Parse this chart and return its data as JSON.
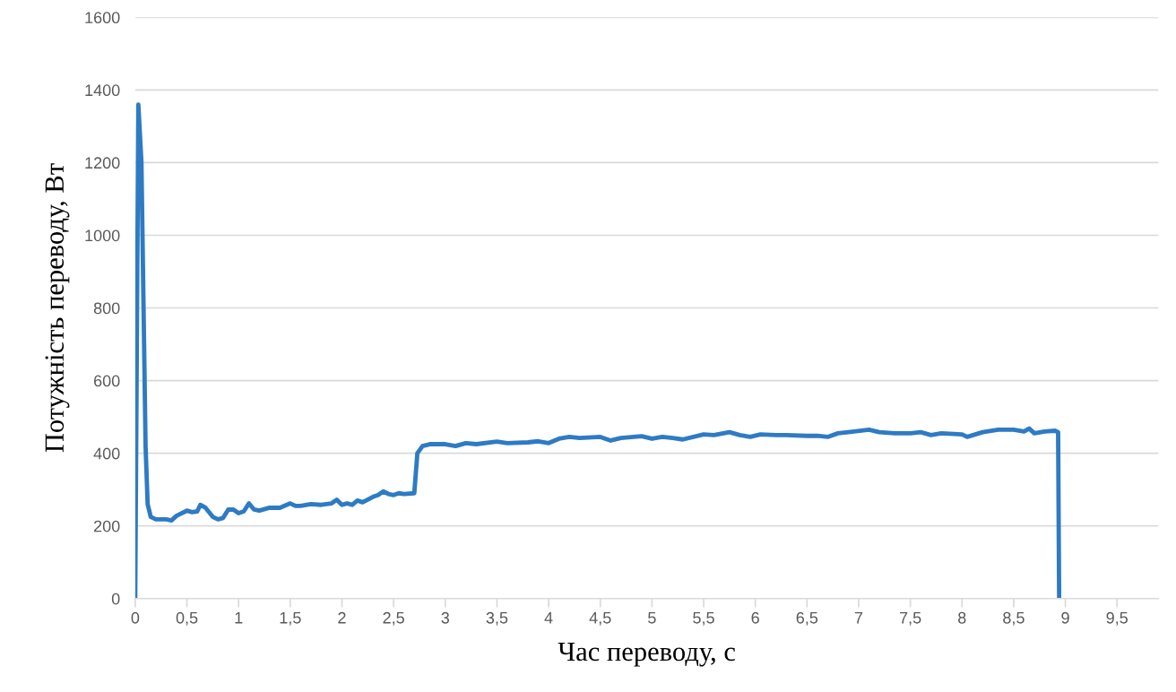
{
  "chart_data": {
    "type": "line",
    "xlabel": "Час переводу, с",
    "ylabel": "Потужність переводу, Вт",
    "xlim": [
      0,
      9.9
    ],
    "ylim": [
      0,
      1600
    ],
    "xticks": [
      0,
      {
        "value": 0.5,
        "label": "0,5"
      },
      1,
      {
        "value": 1.5,
        "label": "1,5"
      },
      2,
      {
        "value": 2.5,
        "label": "2,5"
      },
      3,
      {
        "value": 3.5,
        "label": "3,5"
      },
      4,
      {
        "value": 4.5,
        "label": "4,5"
      },
      5,
      {
        "value": 5.5,
        "label": "5,5"
      },
      6,
      {
        "value": 6.5,
        "label": "6,5"
      },
      7,
      {
        "value": 7.5,
        "label": "7,5"
      },
      8,
      {
        "value": 8.5,
        "label": "8,5"
      },
      9,
      {
        "value": 9.5,
        "label": "9,5"
      }
    ],
    "yticks": [
      0,
      200,
      400,
      600,
      800,
      1000,
      1200,
      1400,
      1600
    ],
    "grid": "y",
    "marker": "none",
    "line_style": "solid",
    "series": [
      {
        "color": "#2e7bc4",
        "x": [
          0,
          0.03,
          0.06,
          0.1,
          0.12,
          0.15,
          0.2,
          0.3,
          0.35,
          0.4,
          0.5,
          0.55,
          0.6,
          0.63,
          0.68,
          0.75,
          0.8,
          0.85,
          0.9,
          0.95,
          1.0,
          1.05,
          1.1,
          1.15,
          1.2,
          1.3,
          1.4,
          1.5,
          1.55,
          1.6,
          1.7,
          1.8,
          1.9,
          1.95,
          2.0,
          2.05,
          2.1,
          2.15,
          2.2,
          2.3,
          2.35,
          2.4,
          2.45,
          2.5,
          2.55,
          2.6,
          2.7,
          2.73,
          2.78,
          2.85,
          3.0,
          3.1,
          3.2,
          3.3,
          3.5,
          3.6,
          3.8,
          3.9,
          4.0,
          4.1,
          4.2,
          4.3,
          4.5,
          4.6,
          4.7,
          4.9,
          5.0,
          5.1,
          5.2,
          5.3,
          5.5,
          5.6,
          5.75,
          5.85,
          5.95,
          6.05,
          6.2,
          6.3,
          6.5,
          6.6,
          6.7,
          6.8,
          6.9,
          7.1,
          7.2,
          7.35,
          7.5,
          7.6,
          7.7,
          7.8,
          8.0,
          8.05,
          8.2,
          8.35,
          8.5,
          8.6,
          8.65,
          8.7,
          8.8,
          8.9,
          8.93,
          8.94
        ],
        "values": [
          0,
          1360,
          1200,
          420,
          260,
          225,
          218,
          218,
          215,
          228,
          242,
          238,
          240,
          258,
          250,
          225,
          218,
          222,
          245,
          245,
          235,
          240,
          262,
          245,
          242,
          250,
          250,
          262,
          255,
          255,
          260,
          258,
          262,
          272,
          258,
          262,
          258,
          270,
          265,
          280,
          285,
          295,
          288,
          285,
          290,
          288,
          290,
          400,
          420,
          425,
          425,
          420,
          428,
          425,
          432,
          428,
          430,
          433,
          428,
          440,
          445,
          442,
          445,
          435,
          442,
          447,
          440,
          445,
          442,
          438,
          452,
          450,
          458,
          450,
          445,
          452,
          450,
          450,
          448,
          448,
          445,
          455,
          458,
          465,
          458,
          455,
          455,
          458,
          450,
          455,
          452,
          445,
          458,
          465,
          465,
          460,
          468,
          455,
          460,
          462,
          458,
          0
        ]
      }
    ]
  }
}
